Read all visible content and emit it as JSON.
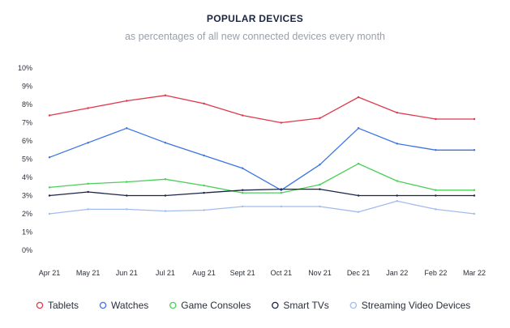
{
  "chart_data": {
    "type": "line",
    "title": "POPULAR DEVICES",
    "subtitle": "as percentages of all new connected devices every month",
    "categories": [
      "Apr 21",
      "May 21",
      "Jun 21",
      "Jul 21",
      "Aug 21",
      "Sept 21",
      "Oct 21",
      "Nov 21",
      "Dec 21",
      "Jan 22",
      "Feb 22",
      "Mar 22"
    ],
    "yticks": [
      "0%",
      "1%",
      "2%",
      "3%",
      "4%",
      "5%",
      "6%",
      "7%",
      "8%",
      "9%",
      "10%"
    ],
    "ylim": [
      0,
      10
    ],
    "grid": false,
    "legend_position": "bottom",
    "series": [
      {
        "name": "Tablets",
        "color": "#e0384b",
        "values": [
          7.4,
          7.8,
          8.2,
          8.5,
          8.05,
          7.4,
          7.0,
          7.25,
          8.4,
          7.55,
          7.2,
          7.2
        ]
      },
      {
        "name": "Watches",
        "color": "#3a74e6",
        "values": [
          5.1,
          5.9,
          6.7,
          5.9,
          5.2,
          4.5,
          3.3,
          4.7,
          6.7,
          5.85,
          5.5,
          5.5
        ]
      },
      {
        "name": "Game Consoles",
        "color": "#4ccf5a",
        "values": [
          3.45,
          3.65,
          3.75,
          3.9,
          3.55,
          3.15,
          3.15,
          3.6,
          4.75,
          3.8,
          3.3,
          3.3
        ]
      },
      {
        "name": "Smart TVs",
        "color": "#1c2547",
        "values": [
          3.0,
          3.2,
          3.0,
          3.0,
          3.15,
          3.3,
          3.35,
          3.35,
          3.0,
          3.0,
          3.0,
          3.0
        ]
      },
      {
        "name": "Streaming Video Devices",
        "color": "#a3bcee",
        "values": [
          2.0,
          2.25,
          2.25,
          2.15,
          2.2,
          2.4,
          2.4,
          2.4,
          2.1,
          2.7,
          2.25,
          2.0
        ]
      }
    ]
  }
}
